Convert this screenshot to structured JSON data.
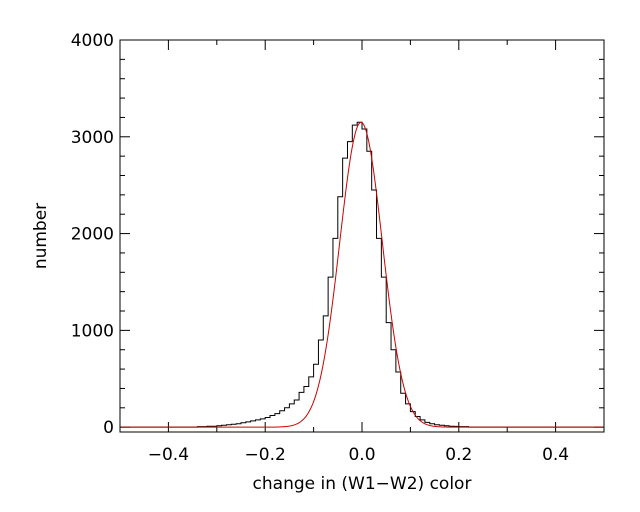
{
  "chart_data": {
    "type": "histogram",
    "title": "",
    "xlabel": "change in (W1−W2) color",
    "ylabel": "number",
    "xlim": [
      -0.5,
      0.5
    ],
    "ylim": [
      -50,
      4000
    ],
    "grid": false,
    "legend": "none",
    "x_ticks": [
      -0.4,
      -0.2,
      0.0,
      0.2,
      0.4
    ],
    "x_tick_labels": [
      "−0.4",
      "−0.2",
      "0.0",
      "0.2",
      "0.4"
    ],
    "y_ticks": [
      0,
      1000,
      2000,
      3000,
      4000
    ],
    "y_tick_labels": [
      "0",
      "1000",
      "2000",
      "3000",
      "4000"
    ],
    "bin_width": 0.01,
    "series": [
      {
        "kind": "step-histogram",
        "color": "#000000",
        "bin_left_edges": [
          -0.5,
          -0.49,
          -0.48,
          -0.47,
          -0.46,
          -0.45,
          -0.44,
          -0.43,
          -0.42,
          -0.41,
          -0.4,
          -0.39,
          -0.38,
          -0.37,
          -0.36,
          -0.35,
          -0.34,
          -0.33,
          -0.32,
          -0.31,
          -0.3,
          -0.29,
          -0.28,
          -0.27,
          -0.26,
          -0.25,
          -0.24,
          -0.23,
          -0.22,
          -0.21,
          -0.2,
          -0.19,
          -0.18,
          -0.17,
          -0.16,
          -0.15,
          -0.14,
          -0.13,
          -0.12,
          -0.11,
          -0.1,
          -0.09,
          -0.08,
          -0.07,
          -0.06,
          -0.05,
          -0.04,
          -0.03,
          -0.02,
          -0.01,
          0.0,
          0.01,
          0.02,
          0.03,
          0.04,
          0.05,
          0.06,
          0.07,
          0.08,
          0.09,
          0.1,
          0.11,
          0.12,
          0.13,
          0.14,
          0.15,
          0.16,
          0.17,
          0.18,
          0.19,
          0.2,
          0.21,
          0.22,
          0.23,
          0.24,
          0.25,
          0.26,
          0.27,
          0.28,
          0.29,
          0.3,
          0.31,
          0.32,
          0.33,
          0.34,
          0.35,
          0.36,
          0.37,
          0.38,
          0.39,
          0.4,
          0.41,
          0.42,
          0.43,
          0.44,
          0.45,
          0.46,
          0.47,
          0.48,
          0.49
        ],
        "counts": [
          0,
          0,
          0,
          0,
          0,
          0,
          0,
          0,
          0,
          0,
          0,
          0,
          0,
          0,
          0,
          0,
          5,
          5,
          10,
          10,
          15,
          20,
          25,
          30,
          35,
          45,
          55,
          65,
          75,
          85,
          100,
          120,
          140,
          170,
          200,
          240,
          280,
          360,
          420,
          520,
          650,
          900,
          1150,
          1550,
          1950,
          2380,
          2780,
          2950,
          3120,
          3150,
          3080,
          2850,
          2450,
          1950,
          1550,
          1080,
          800,
          570,
          350,
          240,
          160,
          110,
          75,
          50,
          35,
          25,
          20,
          15,
          10,
          8,
          5,
          5,
          0,
          0,
          0,
          0,
          0,
          0,
          0,
          0,
          0,
          0,
          0,
          0,
          0,
          0,
          0,
          0,
          0,
          0,
          0,
          0,
          0,
          0,
          0,
          0,
          0,
          0,
          0,
          0
        ]
      },
      {
        "kind": "gaussian-fit",
        "color": "#cc0000",
        "amplitude": 3150,
        "center": -0.002,
        "sigma": 0.044
      }
    ]
  }
}
